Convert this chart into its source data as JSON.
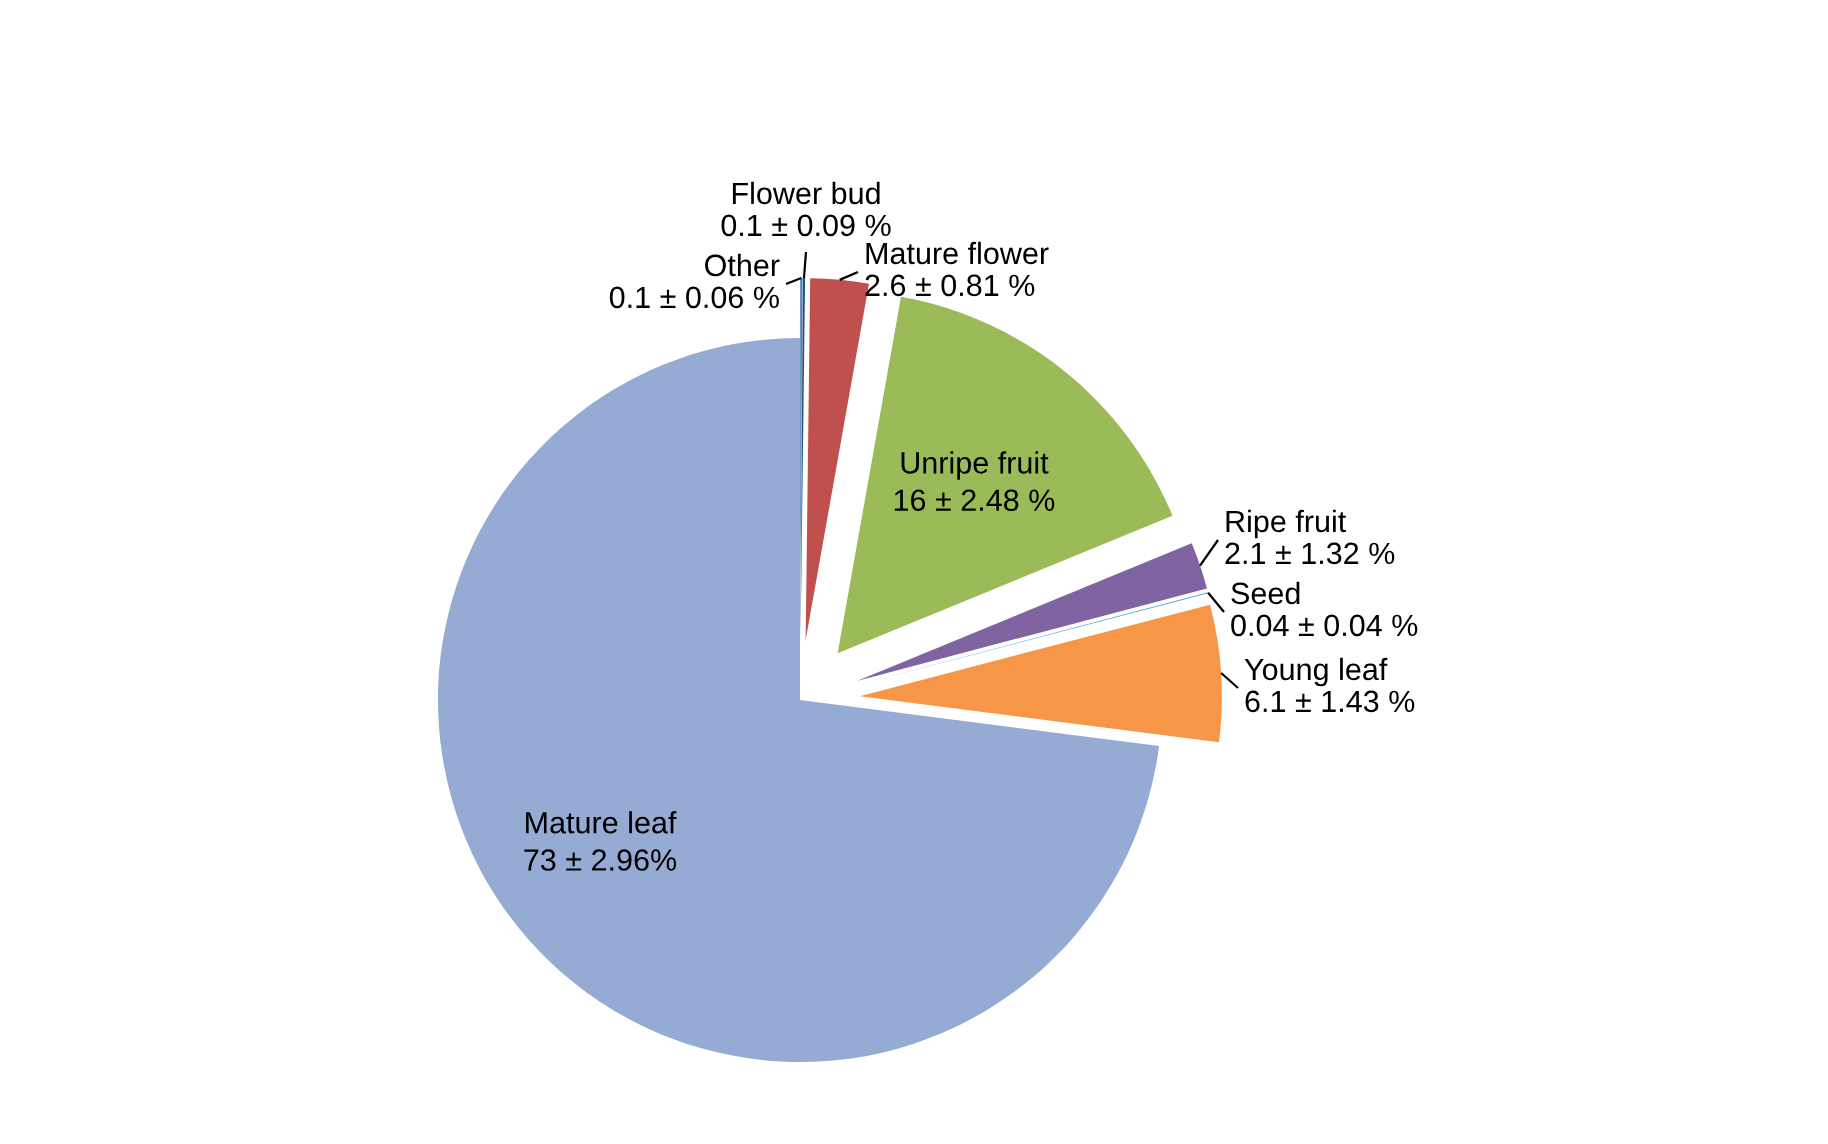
{
  "chart_data": {
    "type": "pie",
    "categories": [
      "Other",
      "Flower bud",
      "Mature flower",
      "Unripe fruit",
      "Ripe fruit",
      "Seed",
      "Young leaf",
      "Mature leaf"
    ],
    "values": [
      0.1,
      0.1,
      2.6,
      16,
      2.1,
      0.04,
      6.1,
      73
    ],
    "value_labels": [
      "0.1 ± 0.06 %",
      "0.1 ± 0.09 %",
      "2.6 ± 0.81 %",
      "16 ± 2.48 %",
      "2.1 ± 1.32 %",
      "0.04 ± 0.04 %",
      "6.1 ± 1.43 %",
      "73 ± 2.96%"
    ],
    "colors": [
      "#4f81bd",
      "#2c4d75",
      "#c0504d",
      "#9bbb59",
      "#8064a2",
      "#4bacc6",
      "#f79646",
      "#95abd4"
    ],
    "legend": false
  }
}
